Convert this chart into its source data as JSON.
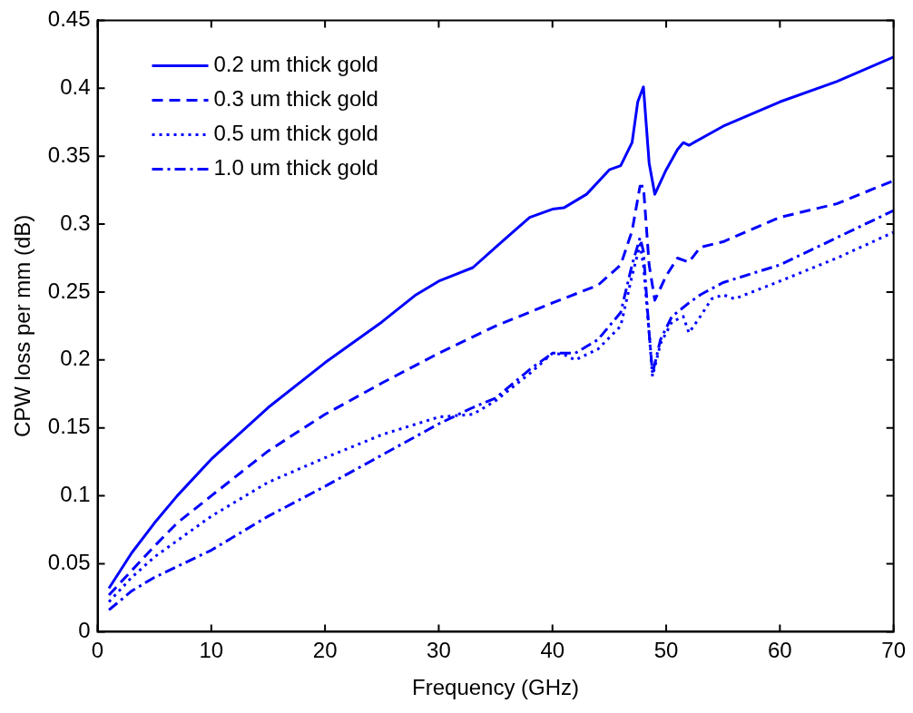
{
  "chart_data": {
    "type": "line",
    "xlabel": "Frequency (GHz)",
    "ylabel": "CPW loss per mm (dB)",
    "xlim": [
      0,
      70
    ],
    "xticks": [
      0,
      10,
      20,
      30,
      40,
      50,
      60,
      70
    ],
    "ylim": [
      0,
      0.45
    ],
    "yticks": [
      0,
      0.05,
      0.1,
      0.15,
      0.2,
      0.25,
      0.3,
      0.35,
      0.4,
      0.45
    ],
    "grid": false,
    "legend": "top left",
    "marker": "none",
    "series": [
      {
        "name": "0.2 um thick gold",
        "color": "#0000ff",
        "line_style": "solid",
        "x": [
          1,
          2,
          3,
          5,
          7,
          10,
          15,
          20,
          25,
          28,
          30,
          33,
          35,
          38,
          40,
          41,
          43,
          45,
          46,
          47,
          47.5,
          48,
          48.5,
          49,
          50,
          51,
          51.5,
          52,
          55,
          60,
          65,
          70
        ],
        "values": [
          0.032,
          0.045,
          0.058,
          0.08,
          0.1,
          0.127,
          0.165,
          0.198,
          0.228,
          0.248,
          0.258,
          0.268,
          0.283,
          0.305,
          0.311,
          0.312,
          0.322,
          0.34,
          0.343,
          0.36,
          0.39,
          0.401,
          0.345,
          0.322,
          0.34,
          0.355,
          0.36,
          0.358,
          0.372,
          0.39,
          0.405,
          0.423
        ]
      },
      {
        "name": "0.3 um thick gold",
        "color": "#0000ff",
        "line_style": "dashed",
        "x": [
          1,
          3,
          5,
          7,
          10,
          15,
          20,
          25,
          30,
          35,
          40,
          44,
          46,
          47,
          47.7,
          48,
          48.5,
          49,
          50,
          51,
          52,
          53,
          55,
          60,
          65,
          70
        ],
        "values": [
          0.027,
          0.045,
          0.063,
          0.08,
          0.1,
          0.133,
          0.16,
          0.183,
          0.205,
          0.225,
          0.242,
          0.255,
          0.27,
          0.295,
          0.328,
          0.328,
          0.27,
          0.244,
          0.262,
          0.275,
          0.272,
          0.283,
          0.287,
          0.305,
          0.315,
          0.332
        ]
      },
      {
        "name": "0.5 um thick gold",
        "color": "#0000ff",
        "line_style": "dotted",
        "x": [
          1,
          3,
          5,
          10,
          15,
          20,
          25,
          30,
          33,
          35,
          38,
          40,
          41,
          42,
          44,
          46,
          47,
          47.7,
          48,
          48.5,
          48.8,
          49.5,
          50.5,
          51.5,
          52,
          53,
          54,
          55,
          56,
          60,
          65,
          70
        ],
        "values": [
          0.022,
          0.04,
          0.055,
          0.085,
          0.11,
          0.128,
          0.145,
          0.158,
          0.16,
          0.17,
          0.19,
          0.205,
          0.204,
          0.2,
          0.208,
          0.225,
          0.262,
          0.285,
          0.27,
          0.22,
          0.188,
          0.212,
          0.228,
          0.232,
          0.22,
          0.232,
          0.245,
          0.248,
          0.245,
          0.258,
          0.275,
          0.294
        ]
      },
      {
        "name": "1.0 um thick gold",
        "color": "#0000ff",
        "line_style": "dashdot",
        "x": [
          1,
          3,
          5,
          10,
          15,
          20,
          25,
          30,
          33,
          35,
          38,
          40,
          42,
          44,
          46,
          47,
          47.7,
          48,
          48.5,
          48.8,
          49.5,
          50.5,
          52,
          53,
          55,
          60,
          65,
          70
        ],
        "values": [
          0.016,
          0.03,
          0.04,
          0.06,
          0.085,
          0.107,
          0.13,
          0.153,
          0.165,
          0.172,
          0.193,
          0.205,
          0.205,
          0.215,
          0.235,
          0.27,
          0.29,
          0.28,
          0.22,
          0.19,
          0.215,
          0.232,
          0.242,
          0.248,
          0.257,
          0.27,
          0.29,
          0.31
        ]
      }
    ]
  }
}
